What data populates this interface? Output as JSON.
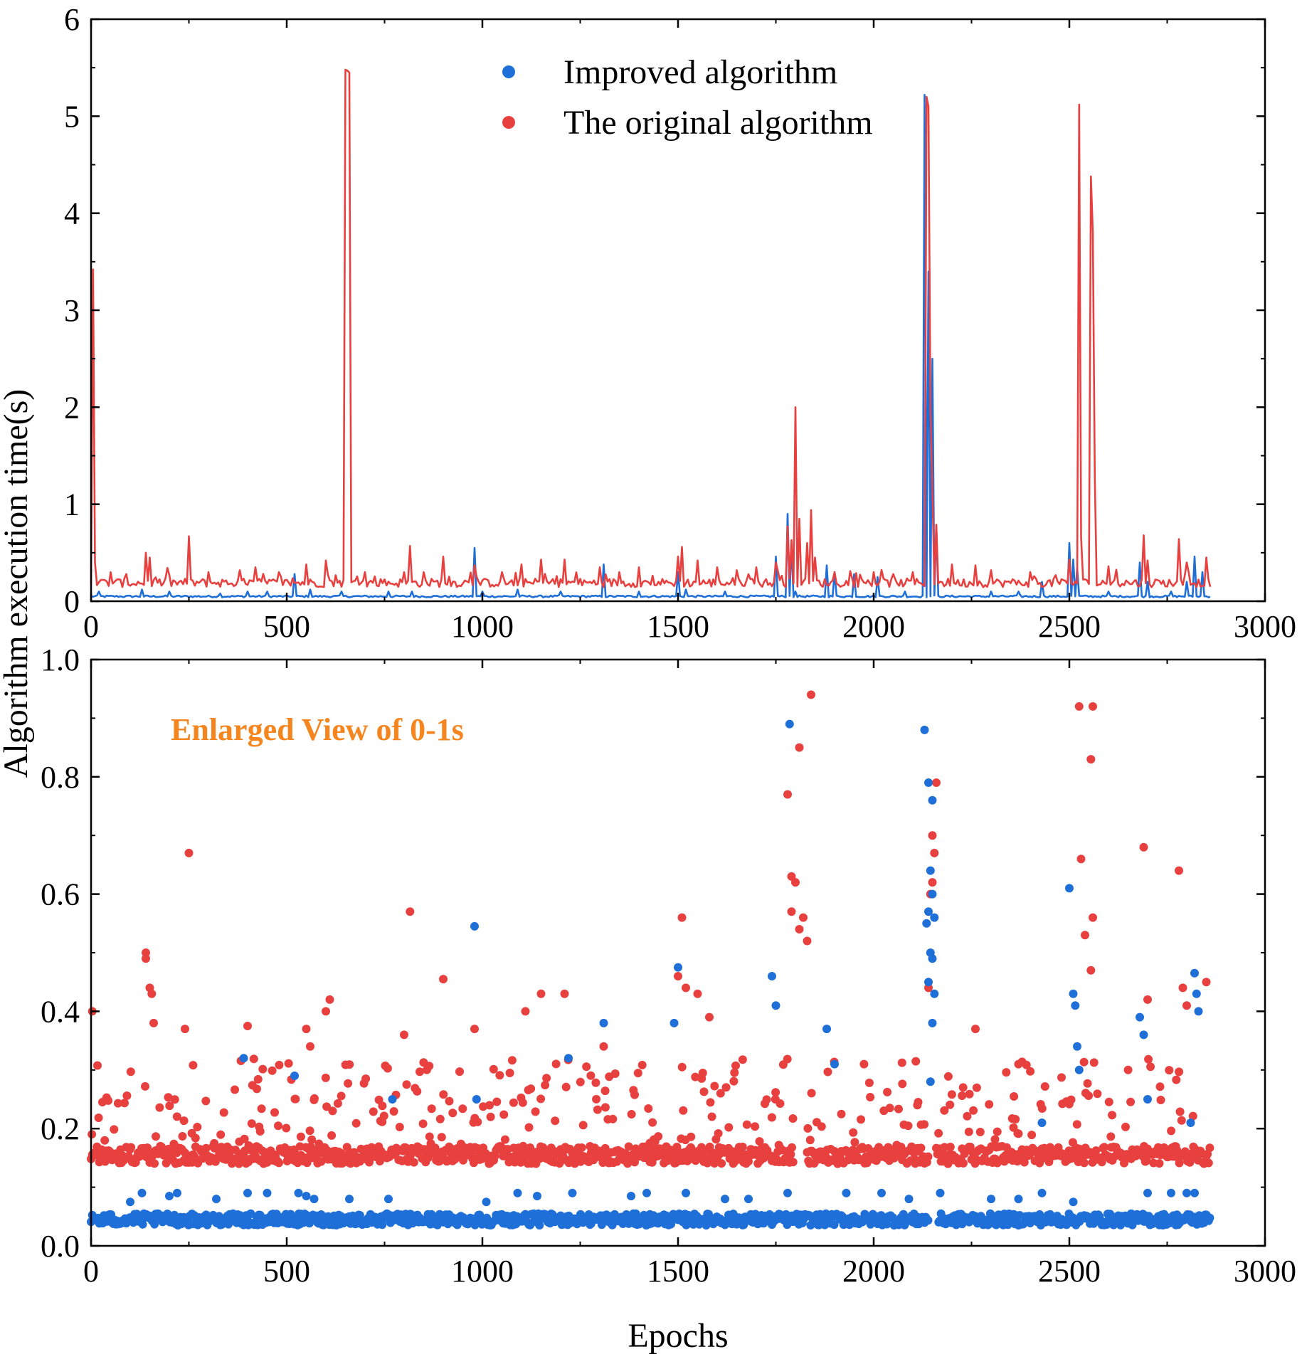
{
  "colors": {
    "improved": "#1f6fd8",
    "original": "#e8403f",
    "annotation": "#f5861f",
    "axis": "#000000"
  },
  "chart_data": [
    {
      "type": "line",
      "xlim": [
        0,
        3000
      ],
      "ylim": [
        0,
        6
      ],
      "xticks": [
        "0",
        "500",
        "1000",
        "1500",
        "2000",
        "2500",
        "3000"
      ],
      "yticks": [
        "0",
        "1",
        "2",
        "3",
        "4",
        "5",
        "6"
      ],
      "ylabel": "Algorithm execution time(s)",
      "xlabel": "",
      "grid": false,
      "legend": "top-center",
      "series": [
        {
          "name": "Improved algorithm",
          "color": "#1f6fd8",
          "baseline": 0.05,
          "x_end": 2860,
          "peaks": [
            [
              20,
              0.1
            ],
            [
              130,
              0.12
            ],
            [
              200,
              0.1
            ],
            [
              330,
              0.08
            ],
            [
              400,
              0.1
            ],
            [
              450,
              0.1
            ],
            [
              520,
              0.28
            ],
            [
              560,
              0.12
            ],
            [
              640,
              0.1
            ],
            [
              760,
              0.1
            ],
            [
              820,
              0.1
            ],
            [
              980,
              0.55
            ],
            [
              1000,
              0.1
            ],
            [
              1090,
              0.12
            ],
            [
              1200,
              0.1
            ],
            [
              1310,
              0.38
            ],
            [
              1400,
              0.1
            ],
            [
              1500,
              0.3
            ],
            [
              1520,
              0.12
            ],
            [
              1620,
              0.1
            ],
            [
              1750,
              0.46
            ],
            [
              1780,
              0.9
            ],
            [
              1790,
              0.6
            ],
            [
              1800,
              0.1
            ],
            [
              1880,
              0.37
            ],
            [
              1900,
              0.3
            ],
            [
              1950,
              0.28
            ],
            [
              2010,
              0.25
            ],
            [
              2080,
              0.1
            ],
            [
              2130,
              5.22
            ],
            [
              2140,
              3.4
            ],
            [
              2150,
              2.5
            ],
            [
              2160,
              0.78
            ],
            [
              2300,
              0.1
            ],
            [
              2370,
              0.1
            ],
            [
              2430,
              0.2
            ],
            [
              2500,
              0.6
            ],
            [
              2510,
              0.43
            ],
            [
              2520,
              0.34
            ],
            [
              2600,
              0.1
            ],
            [
              2680,
              0.4
            ],
            [
              2700,
              0.2
            ],
            [
              2760,
              0.1
            ],
            [
              2800,
              0.2
            ],
            [
              2820,
              0.46
            ],
            [
              2840,
              0.3
            ]
          ]
        },
        {
          "name": "The original algorithm",
          "color": "#e8403f",
          "baseline": 0.16,
          "x_end": 2860,
          "peaks": [
            [
              3,
              3.42
            ],
            [
              8,
              0.4
            ],
            [
              50,
              0.3
            ],
            [
              90,
              0.28
            ],
            [
              140,
              0.5
            ],
            [
              150,
              0.45
            ],
            [
              200,
              0.27
            ],
            [
              250,
              0.67
            ],
            [
              300,
              0.3
            ],
            [
              380,
              0.32
            ],
            [
              420,
              0.35
            ],
            [
              480,
              0.3
            ],
            [
              550,
              0.38
            ],
            [
              600,
              0.42
            ],
            [
              650,
              5.48
            ],
            [
              655,
              5.47
            ],
            [
              660,
              5.45
            ],
            [
              700,
              0.3
            ],
            [
              800,
              0.3
            ],
            [
              815,
              0.57
            ],
            [
              850,
              0.3
            ],
            [
              900,
              0.46
            ],
            [
              980,
              0.37
            ],
            [
              1050,
              0.3
            ],
            [
              1100,
              0.38
            ],
            [
              1150,
              0.43
            ],
            [
              1210,
              0.43
            ],
            [
              1300,
              0.35
            ],
            [
              1350,
              0.3
            ],
            [
              1400,
              0.35
            ],
            [
              1500,
              0.46
            ],
            [
              1510,
              0.56
            ],
            [
              1550,
              0.42
            ],
            [
              1600,
              0.35
            ],
            [
              1650,
              0.32
            ],
            [
              1700,
              0.35
            ],
            [
              1750,
              0.4
            ],
            [
              1780,
              0.77
            ],
            [
              1790,
              0.63
            ],
            [
              1800,
              2.0
            ],
            [
              1810,
              0.85
            ],
            [
              1830,
              0.6
            ],
            [
              1840,
              0.94
            ],
            [
              1850,
              0.45
            ],
            [
              1900,
              0.3
            ],
            [
              2000,
              0.3
            ],
            [
              2050,
              0.28
            ],
            [
              2100,
              0.3
            ],
            [
              2135,
              5.2
            ],
            [
              2140,
              5.1
            ],
            [
              2145,
              1.98
            ],
            [
              2150,
              1.15
            ],
            [
              2160,
              0.79
            ],
            [
              2200,
              0.38
            ],
            [
              2260,
              0.37
            ],
            [
              2300,
              0.32
            ],
            [
              2400,
              0.3
            ],
            [
              2500,
              0.43
            ],
            [
              2525,
              5.12
            ],
            [
              2530,
              0.66
            ],
            [
              2555,
              4.38
            ],
            [
              2560,
              3.8
            ],
            [
              2565,
              1.27
            ],
            [
              2600,
              0.36
            ],
            [
              2690,
              0.68
            ],
            [
              2700,
              0.42
            ],
            [
              2780,
              0.64
            ],
            [
              2800,
              0.4
            ],
            [
              2850,
              0.45
            ]
          ]
        }
      ]
    },
    {
      "type": "scatter",
      "xlim": [
        0,
        3000
      ],
      "ylim": [
        0,
        1
      ],
      "xticks": [
        "0",
        "500",
        "1000",
        "1500",
        "2000",
        "2500",
        "3000"
      ],
      "yticks": [
        "0.0",
        "0.2",
        "0.4",
        "0.6",
        "0.8",
        "1.0"
      ],
      "xlabel": "Epochs",
      "ylabel": "",
      "grid": false,
      "annotation": "Enlarged View of 0-1s",
      "series": [
        {
          "name": "Improved algorithm",
          "color": "#1f6fd8",
          "band": [
            0.035,
            0.055
          ],
          "points": [
            [
              100,
              0.075
            ],
            [
              130,
              0.09
            ],
            [
              200,
              0.085
            ],
            [
              220,
              0.09
            ],
            [
              320,
              0.08
            ],
            [
              390,
              0.32
            ],
            [
              400,
              0.09
            ],
            [
              450,
              0.09
            ],
            [
              520,
              0.29
            ],
            [
              530,
              0.09
            ],
            [
              550,
              0.085
            ],
            [
              570,
              0.08
            ],
            [
              660,
              0.08
            ],
            [
              760,
              0.08
            ],
            [
              770,
              0.25
            ],
            [
              980,
              0.545
            ],
            [
              985,
              0.25
            ],
            [
              1010,
              0.075
            ],
            [
              1090,
              0.09
            ],
            [
              1140,
              0.085
            ],
            [
              1220,
              0.32
            ],
            [
              1230,
              0.09
            ],
            [
              1310,
              0.38
            ],
            [
              1380,
              0.085
            ],
            [
              1420,
              0.09
            ],
            [
              1500,
              0.475
            ],
            [
              1490,
              0.38
            ],
            [
              1520,
              0.09
            ],
            [
              1620,
              0.08
            ],
            [
              1680,
              0.08
            ],
            [
              1740,
              0.46
            ],
            [
              1750,
              0.41
            ],
            [
              1780,
              0.09
            ],
            [
              1785,
              0.89
            ],
            [
              1880,
              0.37
            ],
            [
              1900,
              0.31
            ],
            [
              1930,
              0.09
            ],
            [
              2020,
              0.09
            ],
            [
              2090,
              0.08
            ],
            [
              2130,
              0.88
            ],
            [
              2140,
              0.79
            ],
            [
              2150,
              0.76
            ],
            [
              2145,
              0.64
            ],
            [
              2150,
              0.6
            ],
            [
              2155,
              0.56
            ],
            [
              2140,
              0.57
            ],
            [
              2135,
              0.55
            ],
            [
              2145,
              0.5
            ],
            [
              2150,
              0.49
            ],
            [
              2140,
              0.45
            ],
            [
              2155,
              0.43
            ],
            [
              2150,
              0.38
            ],
            [
              2145,
              0.28
            ],
            [
              2170,
              0.09
            ],
            [
              2300,
              0.08
            ],
            [
              2370,
              0.08
            ],
            [
              2430,
              0.09
            ],
            [
              2430,
              0.21
            ],
            [
              2500,
              0.61
            ],
            [
              2510,
              0.43
            ],
            [
              2515,
              0.41
            ],
            [
              2520,
              0.34
            ],
            [
              2525,
              0.3
            ],
            [
              2510,
              0.075
            ],
            [
              2680,
              0.39
            ],
            [
              2690,
              0.36
            ],
            [
              2700,
              0.09
            ],
            [
              2700,
              0.25
            ],
            [
              2760,
              0.09
            ],
            [
              2800,
              0.09
            ],
            [
              2810,
              0.21
            ],
            [
              2820,
              0.465
            ],
            [
              2825,
              0.43
            ],
            [
              2830,
              0.4
            ],
            [
              2820,
              0.09
            ]
          ]
        },
        {
          "name": "The original algorithm",
          "color": "#e8403f",
          "band": [
            0.14,
            0.17
          ],
          "points": [
            [
              3,
              0.4
            ],
            [
              140,
              0.5
            ],
            [
              140,
              0.49
            ],
            [
              150,
              0.44
            ],
            [
              155,
              0.43
            ],
            [
              160,
              0.38
            ],
            [
              250,
              0.67
            ],
            [
              240,
              0.37
            ],
            [
              400,
              0.375
            ],
            [
              550,
              0.37
            ],
            [
              560,
              0.34
            ],
            [
              600,
              0.4
            ],
            [
              610,
              0.42
            ],
            [
              815,
              0.57
            ],
            [
              800,
              0.36
            ],
            [
              900,
              0.455
            ],
            [
              980,
              0.37
            ],
            [
              1110,
              0.4
            ],
            [
              1150,
              0.43
            ],
            [
              1210,
              0.43
            ],
            [
              1310,
              0.34
            ],
            [
              1500,
              0.46
            ],
            [
              1510,
              0.56
            ],
            [
              1520,
              0.44
            ],
            [
              1550,
              0.43
            ],
            [
              1580,
              0.39
            ],
            [
              1780,
              0.77
            ],
            [
              1790,
              0.63
            ],
            [
              1800,
              0.62
            ],
            [
              1810,
              0.85
            ],
            [
              1840,
              0.94
            ],
            [
              1790,
              0.57
            ],
            [
              1820,
              0.56
            ],
            [
              1830,
              0.52
            ],
            [
              1810,
              0.54
            ],
            [
              2140,
              0.44
            ],
            [
              2150,
              0.7
            ],
            [
              2155,
              0.67
            ],
            [
              2160,
              0.79
            ],
            [
              2150,
              0.62
            ],
            [
              2145,
              0.6
            ],
            [
              2260,
              0.37
            ],
            [
              2370,
              0.31
            ],
            [
              2525,
              0.92
            ],
            [
              2560,
              0.92
            ],
            [
              2555,
              0.83
            ],
            [
              2530,
              0.66
            ],
            [
              2560,
              0.56
            ],
            [
              2540,
              0.53
            ],
            [
              2555,
              0.47
            ],
            [
              2690,
              0.68
            ],
            [
              2700,
              0.42
            ],
            [
              2780,
              0.64
            ],
            [
              2790,
              0.44
            ],
            [
              2800,
              0.41
            ],
            [
              2850,
              0.45
            ]
          ]
        }
      ]
    }
  ]
}
